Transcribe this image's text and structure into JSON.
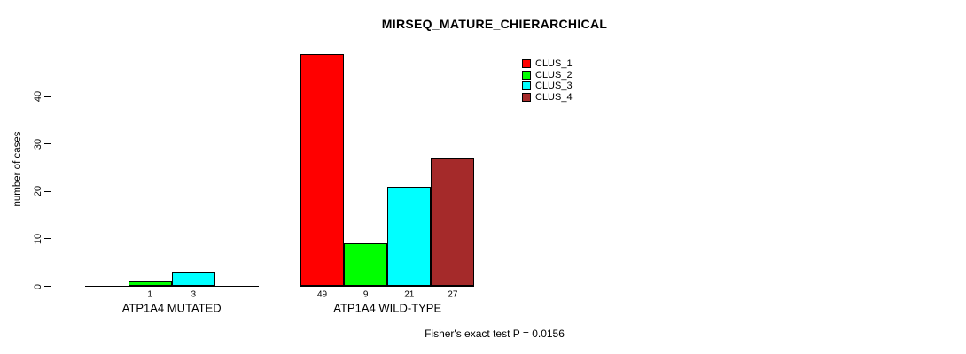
{
  "chart_data": {
    "type": "bar",
    "title": "MIRSEQ_MATURE_CHIERARCHICAL",
    "ylabel": "number of cases",
    "xlabel": "",
    "yticks": [
      0,
      10,
      20,
      30,
      40
    ],
    "ylim": [
      0,
      49.3
    ],
    "grid": false,
    "legend_position": "top-right-inside",
    "legend": [
      {
        "name": "CLUS_1",
        "color": "#ff0000"
      },
      {
        "name": "CLUS_2",
        "color": "#00ff00"
      },
      {
        "name": "CLUS_3",
        "color": "#00ffff"
      },
      {
        "name": "CLUS_4",
        "color": "#a52a2a"
      }
    ],
    "categories": [
      "ATP1A4 MUTATED",
      "ATP1A4 WILD-TYPE"
    ],
    "series": [
      {
        "name": "CLUS_1",
        "color": "#ff0000",
        "values": [
          0,
          49
        ]
      },
      {
        "name": "CLUS_2",
        "color": "#00ff00",
        "values": [
          1,
          9
        ]
      },
      {
        "name": "CLUS_3",
        "color": "#00ffff",
        "values": [
          3,
          21
        ]
      },
      {
        "name": "CLUS_4",
        "color": "#a52a2a",
        "values": [
          0,
          27
        ]
      }
    ],
    "value_labels_shown": "nonzero bars only, printed under each bar",
    "footnote": "Fisher's exact test P = 0.0156",
    "axis_color": "#000000",
    "background_color": "#ffffff"
  }
}
